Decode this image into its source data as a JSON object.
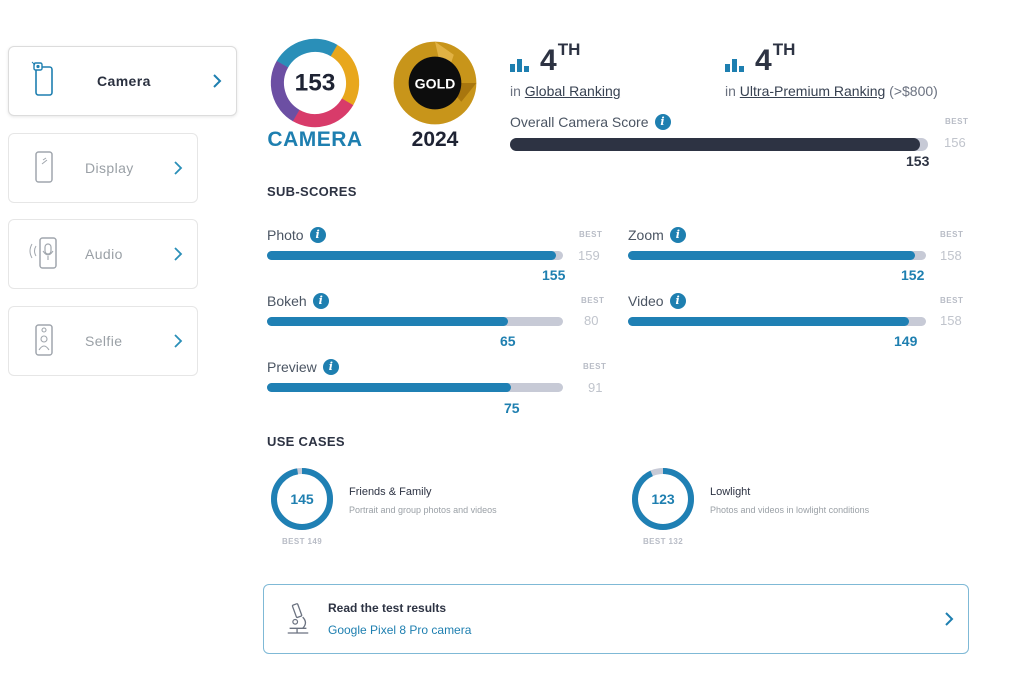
{
  "sidebar": {
    "items": [
      {
        "label": "Camera",
        "icon": "camera-phone-icon",
        "active": true
      },
      {
        "label": "Display",
        "icon": "display-phone-icon",
        "active": false
      },
      {
        "label": "Audio",
        "icon": "audio-phone-icon",
        "active": false
      },
      {
        "label": "Selfie",
        "icon": "selfie-phone-icon",
        "active": false
      }
    ]
  },
  "badges": {
    "camera_score": "153",
    "camera_label": "CAMERA",
    "gold_label": "GOLD",
    "year": "2024"
  },
  "rankings": {
    "global": {
      "rank": "4",
      "suffix": "TH",
      "prefix": "in",
      "link": "Global Ranking"
    },
    "premium": {
      "rank": "4",
      "suffix": "TH",
      "prefix": "in",
      "link": "Ultra-Premium Ranking",
      "note": "(>$800)"
    }
  },
  "overall": {
    "label": "Overall Camera Score",
    "value": "153",
    "best_label": "BEST",
    "best": "156",
    "fraction": 0.981
  },
  "subscores": {
    "title": "SUB-SCORES",
    "best_label": "BEST",
    "items": [
      {
        "label": "Photo",
        "value": "155",
        "best": "159",
        "fraction": 0.975
      },
      {
        "label": "Zoom",
        "value": "152",
        "best": "158",
        "fraction": 0.962
      },
      {
        "label": "Bokeh",
        "value": "65",
        "best": "80",
        "fraction": 0.8125
      },
      {
        "label": "Video",
        "value": "149",
        "best": "158",
        "fraction": 0.943
      },
      {
        "label": "Preview",
        "value": "75",
        "best": "91",
        "fraction": 0.824
      }
    ]
  },
  "use_cases": {
    "title": "USE CASES",
    "items": [
      {
        "score": "145",
        "title": "Friends & Family",
        "desc": "Portrait and group photos and videos",
        "best": "BEST 149",
        "fraction": 0.973
      },
      {
        "score": "123",
        "title": "Lowlight",
        "desc": "Photos and videos in lowlight conditions",
        "best": "BEST 132",
        "fraction": 0.932
      }
    ]
  },
  "results": {
    "title": "Read the test results",
    "link": "Google Pixel 8 Pro camera",
    "icon": "microscope-icon"
  },
  "colors": {
    "accent": "#1f80b4",
    "dark": "#2d3343",
    "track": "#c7cad6",
    "gold": "#c8951a",
    "teal": "#2a8fb8"
  }
}
